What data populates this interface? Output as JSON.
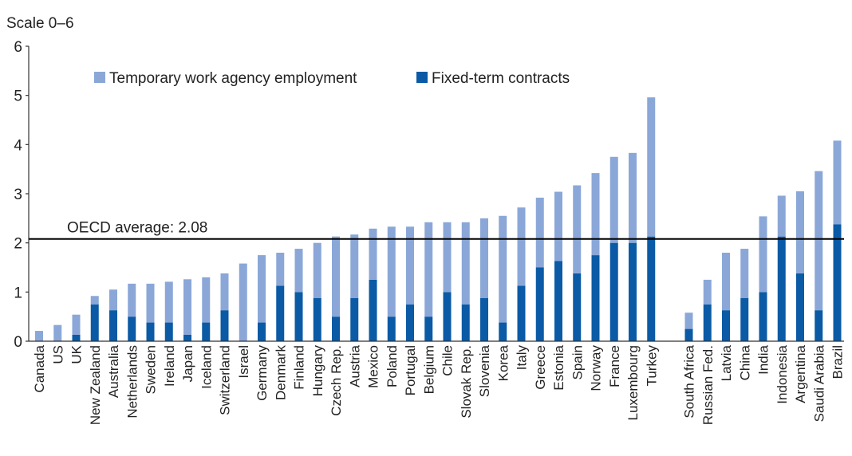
{
  "chart_data": {
    "type": "bar",
    "stacked": true,
    "unit_label": "Scale 0–6",
    "ylim": [
      0,
      6
    ],
    "yticks": [
      0,
      1,
      2,
      3,
      4,
      5,
      6
    ],
    "grid": false,
    "legend_position": "top-left",
    "reference_line": {
      "label": "OECD average: 2.08",
      "value": 2.08,
      "color": "#000000"
    },
    "categories": [
      "Canada",
      "US",
      "UK",
      "New Zealand",
      "Australia",
      "Netherlands",
      "Sweden",
      "Ireland",
      "Japan",
      "Iceland",
      "Switzerland",
      "Israel",
      "Germany",
      "Denmark",
      "Finland",
      "Hungary",
      "Czech Rep.",
      "Austria",
      "Mexico",
      "Poland",
      "Portugal",
      "Belgium",
      "Chile",
      "Slovak Rep.",
      "Slovenia",
      "Korea",
      "Italy",
      "Greece",
      "Estonia",
      "Spain",
      "Norway",
      "France",
      "Luxembourg",
      "Turkey",
      "South Africa",
      "Russian Fed.",
      "Latvia",
      "China",
      "India",
      "Indonesia",
      "Argentina",
      "Saudi Arabia",
      "Brazil"
    ],
    "series": [
      {
        "name": "Fixed-term contracts",
        "color": "#0a5aa6",
        "values": [
          0,
          0,
          0.13,
          0.75,
          0.63,
          0.5,
          0.38,
          0.38,
          0.13,
          0.38,
          0.63,
          0,
          0.38,
          1.13,
          1,
          0.88,
          0.5,
          0.88,
          1.25,
          0.5,
          0.75,
          0.5,
          1,
          0.75,
          0.88,
          0.38,
          1.13,
          1.5,
          1.63,
          1.38,
          1.75,
          2,
          2,
          2.13,
          0.25,
          0.75,
          0.63,
          0.88,
          1,
          2.13,
          1.38,
          0.63,
          2.38
        ]
      },
      {
        "name": "Temporary work agency employment",
        "color": "#8aa7d8",
        "values": [
          0.21,
          0.33,
          0.41,
          0.17,
          0.42,
          0.67,
          0.79,
          0.83,
          1.13,
          0.92,
          0.75,
          1.58,
          1.37,
          0.67,
          0.88,
          1.12,
          1.63,
          1.29,
          1.04,
          1.83,
          1.58,
          1.92,
          1.42,
          1.67,
          1.62,
          2.17,
          1.59,
          1.42,
          1.41,
          1.79,
          1.67,
          1.75,
          1.83,
          2.83,
          0.33,
          0.5,
          1.17,
          1,
          1.54,
          0.83,
          1.67,
          2.83,
          1.7
        ]
      }
    ],
    "legend": [
      {
        "name": "Temporary work agency employment",
        "color": "#8aa7d8"
      },
      {
        "name": "Fixed-term contracts",
        "color": "#0a5aa6"
      }
    ]
  }
}
